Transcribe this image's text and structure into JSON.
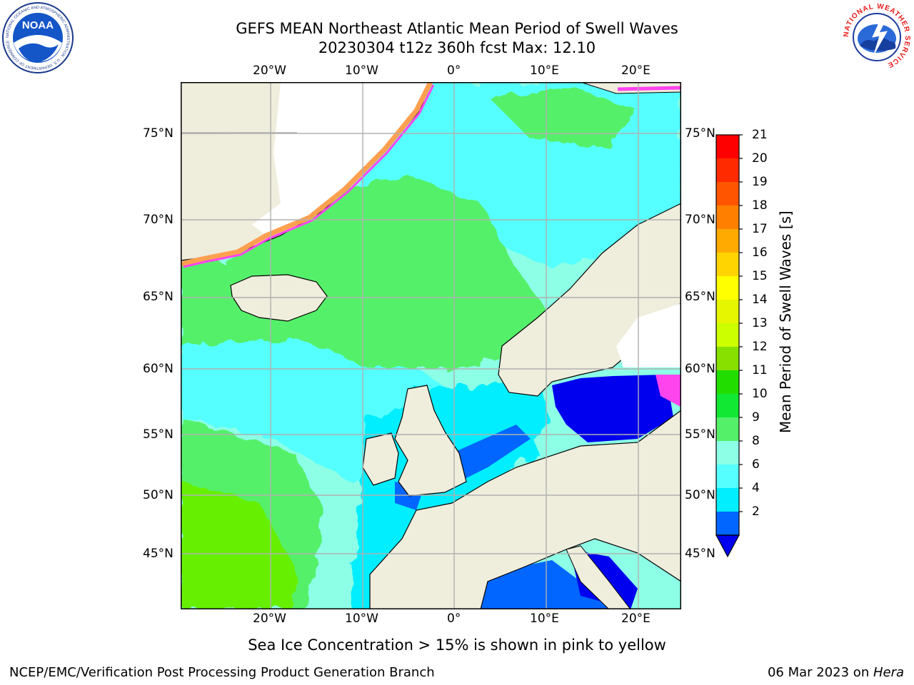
{
  "title": {
    "line1": "GEFS MEAN Northeast Atlantic Mean Period of Swell Waves",
    "line2": "20230304 t12z 360h fcst   Max: 12.10"
  },
  "map": {
    "lon_labels_top": [
      "20°W",
      "10°W",
      "0°",
      "10°E",
      "20°E"
    ],
    "lon_labels_bottom": [
      "20°W",
      "10°W",
      "0°",
      "10°E",
      "20°E"
    ],
    "lat_labels_left": [
      "75°N",
      "70°N",
      "65°N",
      "60°N",
      "55°N",
      "50°N",
      "45°N"
    ],
    "lat_labels_right": [
      "75°N",
      "70°N",
      "65°N",
      "60°N",
      "55°N",
      "50°N",
      "45°N"
    ],
    "colors": {
      "land": "#efeddc",
      "ice": "#ffffff",
      "grid": "#b0b0b0",
      "green_dark": "#22e000",
      "green": "#55f06a",
      "aqua_light": "#8cffe6",
      "cyan": "#55ffff",
      "cyan_bright": "#00eeff",
      "blue": "#0066ff",
      "blue_deep": "#0000ee",
      "ice_pink": "#ff44ee",
      "ice_orange": "#ffa050",
      "ice_yellow": "#ffd030"
    }
  },
  "colorbar": {
    "label": "Mean Period of Swell Waves [s]",
    "ticks": [
      "21",
      "20",
      "19",
      "18",
      "17",
      "16",
      "15",
      "14",
      "13",
      "12",
      "11",
      "10",
      "9",
      "8",
      "6",
      "4",
      "2"
    ],
    "colors_top_to_bottom": [
      "#ff0000",
      "#ff2a00",
      "#ff5500",
      "#ff8000",
      "#ffaa00",
      "#ffd400",
      "#ffff00",
      "#e6f500",
      "#ccff00",
      "#88e000",
      "#22dd00",
      "#11e833",
      "#55f06a",
      "#8cffe6",
      "#55ffff",
      "#00eeff",
      "#0066ff"
    ],
    "extend_color": "#0000ee"
  },
  "caption": "Sea Ice Concentration > 15% is shown in pink to yellow",
  "footer": {
    "left": "NCEP/EMC/Verification Post Processing Product Generation Branch",
    "right_date": "06 Mar 2023 on ",
    "right_host": "Hera"
  },
  "logos": {
    "noaa_text": "NOAA",
    "noaa_ring": "NATIONAL OCEANIC AND ATMOSPHERIC ADMINISTRATION · U.S. DEPARTMENT OF COMMERCE",
    "nws_ring": "NATIONAL WEATHER SERVICE"
  }
}
